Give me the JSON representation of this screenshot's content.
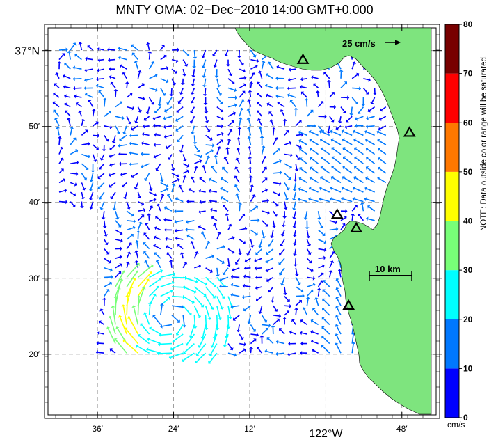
{
  "title": "MNTY OMA: 02−Dec−2010 14:00 GMT+0.000",
  "axes": {
    "x_ticks": [
      {
        "lon": -122.6,
        "label": "36′"
      },
      {
        "lon": -122.4,
        "label": "24′"
      },
      {
        "lon": -122.2,
        "label": "12′"
      },
      {
        "lon": -122.0,
        "label": "122°W"
      },
      {
        "lon": -121.8,
        "label": "48′"
      }
    ],
    "y_ticks": [
      {
        "lat": 37.0,
        "label": "37°N"
      },
      {
        "lat": 36.8333,
        "label": "50′"
      },
      {
        "lat": 36.6667,
        "label": "40′"
      },
      {
        "lat": 36.5,
        "label": "30′"
      },
      {
        "lat": 36.3333,
        "label": "20′"
      }
    ],
    "lon_range": [
      -122.73,
      -121.71
    ],
    "lat_range": [
      36.2,
      37.05
    ],
    "grid": true
  },
  "scale_vector": {
    "label": "25 cm/s",
    "value": 25
  },
  "scale_bar": {
    "label": "10 km"
  },
  "colorbar": {
    "ticks": [
      "0",
      "10",
      "20",
      "30",
      "40",
      "50",
      "60",
      "70",
      "80"
    ],
    "unit": "cm/s",
    "colors": [
      "#0000ff",
      "#0078ff",
      "#00ffff",
      "#78ff78",
      "#ffff00",
      "#ff7800",
      "#ff0000",
      "#780000"
    ]
  },
  "note": "NOTE: Data outside color range will be saturated.",
  "land_color": "#7ee47e",
  "radar_sites": [
    {
      "lon": -122.06,
      "lat": 36.98
    },
    {
      "lon": -121.78,
      "lat": 36.82
    },
    {
      "lon": -121.97,
      "lat": 36.64
    },
    {
      "lon": -121.92,
      "lat": 36.61
    },
    {
      "lon": -121.94,
      "lat": 36.44
    }
  ]
}
